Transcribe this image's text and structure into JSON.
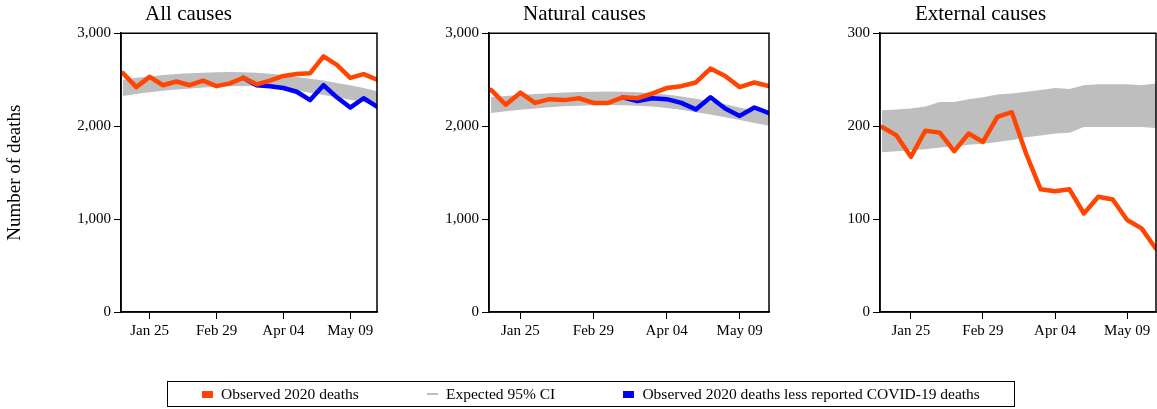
{
  "chart_data": [
    {
      "type": "line",
      "title": "All causes",
      "ylabel": "Number of deaths",
      "legend": "bottom",
      "grid": false,
      "marker": "none",
      "line_style": "solid",
      "x": [
        "--01-11",
        "--01-18",
        "--01-25",
        "--02-01",
        "--02-08",
        "--02-15",
        "--02-22",
        "--02-29",
        "--03-07",
        "--03-14",
        "--03-21",
        "--03-28",
        "--04-04",
        "--04-11",
        "--04-18",
        "--04-25",
        "--05-02",
        "--05-09",
        "--05-16",
        "--05-23"
      ],
      "xlim": [
        "--01-10",
        "--05-23"
      ],
      "xticks": [
        {
          "value": "--01-25",
          "label": "Jan 25"
        },
        {
          "value": "--02-29",
          "label": "Feb 29"
        },
        {
          "value": "--04-04",
          "label": "Apr 04"
        },
        {
          "value": "--05-09",
          "label": "May 09"
        }
      ],
      "ylim": [
        0,
        3000
      ],
      "yticks": [
        0,
        {
          "value": 1000,
          "label": "1,000"
        },
        {
          "value": 2000,
          "label": "2,000"
        },
        {
          "value": 3000,
          "label": "3,000"
        }
      ],
      "series": [
        {
          "name": "Expected 95% CI",
          "type": "area",
          "color": "#bebebe",
          "values": [
            null,
            null,
            null,
            null,
            null,
            null,
            null,
            null,
            null,
            null,
            null,
            null,
            null,
            null,
            null,
            null,
            null,
            null,
            null,
            null
          ],
          "lower": [
            2325,
            2345,
            2365,
            2380,
            2395,
            2405,
            2415,
            2425,
            2430,
            2432,
            2430,
            2420,
            2405,
            2385,
            2360,
            2335,
            2310,
            2285,
            2260,
            2235
          ],
          "upper": [
            2500,
            2520,
            2535,
            2550,
            2560,
            2570,
            2575,
            2580,
            2582,
            2580,
            2575,
            2565,
            2550,
            2530,
            2510,
            2490,
            2465,
            2440,
            2410,
            2375
          ]
        },
        {
          "name": "Observed 2020 deaths",
          "color": "#ff4500",
          "values": [
            2570,
            2420,
            2530,
            2440,
            2480,
            2440,
            2490,
            2430,
            2460,
            2520,
            2450,
            2490,
            2540,
            2560,
            2570,
            2750,
            2660,
            2520,
            2560,
            2500
          ]
        },
        {
          "name": "Observed 2020 deaths less reported COVID-19 deaths",
          "color": "#0000ff",
          "values": [
            null,
            null,
            null,
            null,
            null,
            null,
            null,
            null,
            null,
            2520,
            2440,
            2430,
            2410,
            2370,
            2280,
            2440,
            2310,
            2200,
            2300,
            2210
          ]
        }
      ]
    },
    {
      "type": "line",
      "title": "Natural causes",
      "grid": false,
      "marker": "none",
      "line_style": "solid",
      "x": [
        "--01-11",
        "--01-18",
        "--01-25",
        "--02-01",
        "--02-08",
        "--02-15",
        "--02-22",
        "--02-29",
        "--03-07",
        "--03-14",
        "--03-21",
        "--03-28",
        "--04-04",
        "--04-11",
        "--04-18",
        "--04-25",
        "--05-02",
        "--05-09",
        "--05-16",
        "--05-23"
      ],
      "xlim": [
        "--01-10",
        "--05-23"
      ],
      "xticks": [
        {
          "value": "--01-25",
          "label": "Jan 25"
        },
        {
          "value": "--02-29",
          "label": "Feb 29"
        },
        {
          "value": "--04-04",
          "label": "Apr 04"
        },
        {
          "value": "--05-09",
          "label": "May 09"
        }
      ],
      "ylim": [
        0,
        3000
      ],
      "yticks": [
        0,
        {
          "value": 1000,
          "label": "1,000"
        },
        {
          "value": 2000,
          "label": "2,000"
        },
        {
          "value": 3000,
          "label": "3,000"
        }
      ],
      "series": [
        {
          "type": "area",
          "color": "#bebebe",
          "values": [
            null,
            null,
            null,
            null,
            null,
            null,
            null,
            null,
            null,
            null,
            null,
            null,
            null,
            null,
            null,
            null,
            null,
            null,
            null,
            null
          ],
          "lower": [
            2140,
            2160,
            2175,
            2190,
            2203,
            2213,
            2220,
            2226,
            2228,
            2226,
            2220,
            2210,
            2195,
            2175,
            2150,
            2125,
            2095,
            2065,
            2035,
            2005
          ],
          "upper": [
            2313,
            2325,
            2335,
            2345,
            2355,
            2362,
            2367,
            2370,
            2372,
            2370,
            2365,
            2355,
            2340,
            2320,
            2295,
            2265,
            2235,
            2200,
            2165,
            2130
          ]
        },
        {
          "color": "#ff4500",
          "values": [
            2390,
            2230,
            2360,
            2250,
            2290,
            2280,
            2300,
            2250,
            2250,
            2310,
            2300,
            2350,
            2410,
            2430,
            2470,
            2620,
            2540,
            2420,
            2470,
            2430
          ]
        },
        {
          "color": "#0000ff",
          "values": [
            null,
            null,
            null,
            null,
            null,
            null,
            null,
            null,
            null,
            2310,
            2270,
            2300,
            2290,
            2250,
            2180,
            2310,
            2190,
            2110,
            2200,
            2140
          ]
        }
      ]
    },
    {
      "type": "line",
      "title": "External causes",
      "grid": false,
      "marker": "none",
      "line_style": "solid",
      "x": [
        "--01-11",
        "--01-18",
        "--01-25",
        "--02-01",
        "--02-08",
        "--02-15",
        "--02-22",
        "--02-29",
        "--03-07",
        "--03-14",
        "--03-21",
        "--03-28",
        "--04-04",
        "--04-11",
        "--04-18",
        "--04-25",
        "--05-02",
        "--05-09",
        "--05-16",
        "--05-23"
      ],
      "xlim": [
        "--01-10",
        "--05-23"
      ],
      "xticks": [
        {
          "value": "--01-25",
          "label": "Jan 25"
        },
        {
          "value": "--02-29",
          "label": "Feb 29"
        },
        {
          "value": "--04-04",
          "label": "Apr 04"
        },
        {
          "value": "--05-09",
          "label": "May 09"
        }
      ],
      "ylim": [
        0,
        300
      ],
      "yticks": [
        0,
        100,
        200,
        300
      ],
      "series": [
        {
          "type": "area",
          "color": "#bebebe",
          "values": [
            null,
            null,
            null,
            null,
            null,
            null,
            null,
            null,
            null,
            null,
            null,
            null,
            null,
            null,
            null,
            null,
            null,
            null,
            null,
            null
          ],
          "lower": [
            172,
            173,
            174,
            175,
            177,
            178,
            180,
            181,
            183,
            185,
            188,
            190,
            192,
            193,
            199,
            199,
            199,
            199,
            199,
            198
          ],
          "upper": [
            217,
            218,
            219,
            221,
            226,
            226,
            229,
            231,
            234,
            235,
            237,
            239,
            241,
            240,
            244,
            245,
            245,
            245,
            244,
            246
          ]
        },
        {
          "color": "#ff4500",
          "values": [
            199,
            190,
            167,
            195,
            193,
            173,
            192,
            183,
            210,
            215,
            170,
            132,
            130,
            132,
            106,
            124,
            121,
            99,
            90,
            68
          ]
        }
      ]
    }
  ]
}
